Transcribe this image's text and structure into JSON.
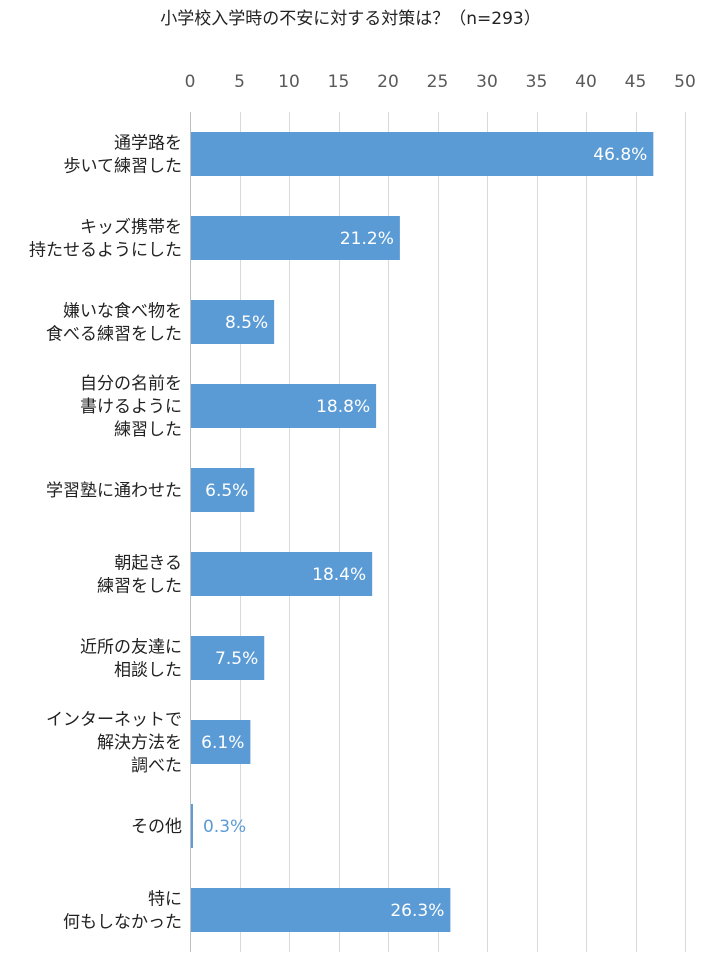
{
  "title": "小学校入学時の不安に対する対策は？（n=293）",
  "chart_data": {
    "type": "bar",
    "orientation": "horizontal",
    "title": "小学校入学時の不安に対する対策は？（n=293）",
    "xlabel": "",
    "ylabel": "",
    "xlim": [
      0,
      50
    ],
    "x_ticks": [
      0,
      5,
      10,
      15,
      20,
      25,
      30,
      35,
      40,
      45,
      50
    ],
    "x_tick_labels": [
      "0",
      "5",
      "10",
      "15",
      "20",
      "25",
      "30",
      "35",
      "40",
      "45",
      "50"
    ],
    "axis_position": "top",
    "grid": true,
    "legend": "none",
    "categories": [
      [
        "通学路を",
        "歩いて練習した"
      ],
      [
        "キッズ携帯を",
        "持たせるようにした"
      ],
      [
        "嫌いな食べ物を",
        "食べる練習をした"
      ],
      [
        "自分の名前を",
        "書けるように",
        "練習した"
      ],
      [
        "学習塾に通わせた"
      ],
      [
        "朝起きる",
        "練習をした"
      ],
      [
        "近所の友達に",
        "相談した"
      ],
      [
        "インターネットで",
        "解決方法を",
        "調べた"
      ],
      [
        "その他"
      ],
      [
        "特に",
        "何もしなかった"
      ]
    ],
    "values": [
      46.8,
      21.2,
      8.5,
      18.8,
      6.5,
      18.4,
      7.5,
      6.1,
      0.3,
      26.3
    ],
    "data_labels": [
      "46.8%",
      "21.2%",
      "8.5%",
      "18.8%",
      "6.5%",
      "18.4%",
      "7.5%",
      "6.1%",
      "0.3%",
      "26.3%"
    ],
    "colors": {
      "bar": "#5b9bd5",
      "label_inside": "#ffffff",
      "label_outside": "#5b9bd5",
      "grid": "#d9d9d9",
      "axis": "#bfbfbf"
    }
  }
}
